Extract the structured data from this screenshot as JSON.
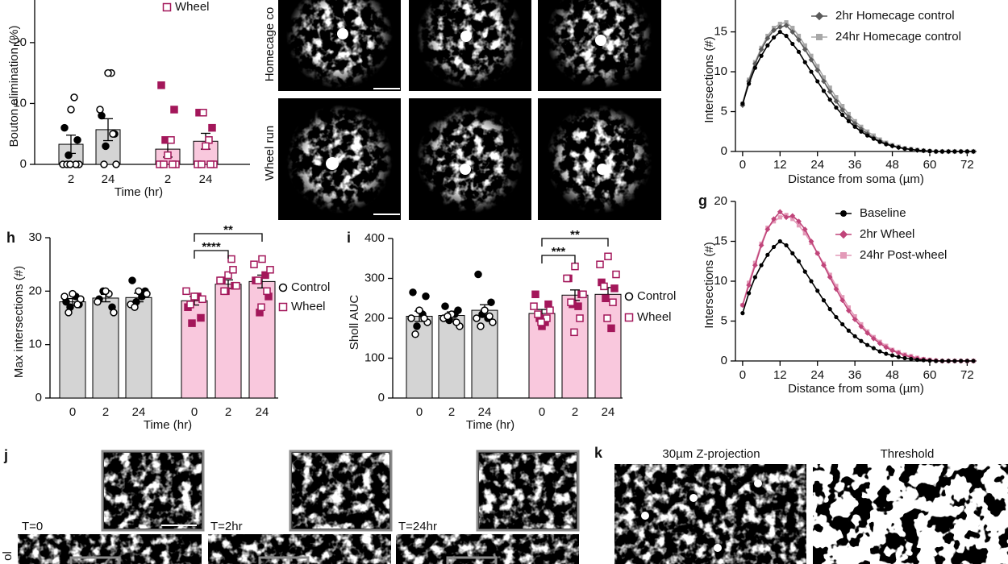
{
  "chart_data": [
    {
      "type": "bar",
      "ylabel": "Bouton elimination (%)",
      "xlabel": "Time (hr)",
      "categories": [
        "2",
        "24",
        "2",
        "24"
      ],
      "values": [
        3.3,
        5.7,
        2.5,
        3.8
      ],
      "errors": [
        1.5,
        1.8,
        1.3,
        1.3
      ],
      "colors": [
        "#d4d4d4",
        "#d4d4d4",
        "#f9c8dd",
        "#f9c8dd"
      ],
      "markers": [
        "circle",
        "circle",
        "square",
        "square"
      ],
      "point_colors": [
        "#000000",
        "#000000",
        "#a3175a",
        "#a3175a"
      ],
      "points_filled": [
        [
          6,
          4,
          1.5
        ],
        [
          8,
          5,
          3
        ],
        [
          13,
          9,
          4
        ],
        [
          8.5,
          6
        ]
      ],
      "points_open": [
        [
          11,
          9,
          0,
          0,
          0,
          0,
          0
        ],
        [
          15,
          15,
          9,
          0,
          0,
          5
        ],
        [
          4,
          1.5,
          0,
          0,
          0,
          0
        ],
        [
          8.5,
          4,
          3,
          0,
          0,
          0,
          0
        ]
      ],
      "ylim": [
        0,
        27
      ],
      "yticks": [
        0,
        10,
        20
      ],
      "legend": [
        {
          "name": "Wheel",
          "marker": "square",
          "color": "#a3175a"
        }
      ]
    },
    {
      "type": "line",
      "ylabel": "Intersections (#)",
      "xlabel": "Distance from soma (µm)",
      "x": [
        0,
        2,
        4,
        6,
        8,
        10,
        12,
        14,
        16,
        18,
        20,
        22,
        24,
        26,
        28,
        30,
        32,
        34,
        36,
        38,
        40,
        42,
        44,
        46,
        48,
        50,
        52,
        54,
        56,
        58,
        60,
        62,
        64,
        66,
        68,
        70,
        72,
        74
      ],
      "xlim": [
        -2.3,
        75
      ],
      "xticks": [
        0,
        12,
        24,
        36,
        48,
        60,
        72
      ],
      "ylim": [
        0,
        19
      ],
      "yticks": [
        0,
        5,
        10,
        15
      ],
      "series": [
        {
          "color": "#000000",
          "marker": "circle",
          "values": [
            6,
            8.5,
            10.5,
            12,
            13.3,
            14.3,
            15,
            14.5,
            13.5,
            12.5,
            11.2,
            10,
            8.8,
            7.6,
            6.5,
            5.5,
            4.6,
            3.8,
            3.1,
            2.5,
            2,
            1.6,
            1.2,
            0.9,
            0.7,
            0.5,
            0.35,
            0.25,
            0.15,
            0.1,
            0.05,
            0,
            0,
            0,
            0,
            0,
            0,
            0
          ]
        },
        {
          "name": "2hr Homecage control",
          "color": "#5a5a5a",
          "marker": "diamond",
          "values": [
            5.8,
            8.8,
            11,
            12.8,
            14.2,
            15.2,
            15.6,
            15.8,
            15,
            14,
            12.8,
            11.5,
            10.2,
            8.8,
            7.5,
            6.3,
            5.2,
            4.3,
            3.5,
            2.8,
            2.2,
            1.7,
            1.3,
            1,
            0.7,
            0.5,
            0.35,
            0.25,
            0.15,
            0.1,
            0.05,
            0,
            0,
            0,
            0,
            0,
            0,
            0
          ]
        },
        {
          "name": "24hr Homecage control",
          "color": "#a8a8a8",
          "marker": "square",
          "values": [
            6,
            9,
            11.2,
            13,
            14.5,
            15.5,
            16,
            16.2,
            15.5,
            14.5,
            13.3,
            12,
            10.7,
            9.3,
            8,
            6.8,
            5.7,
            4.7,
            3.8,
            3.1,
            2.5,
            2,
            1.5,
            1.1,
            0.8,
            0.6,
            0.4,
            0.3,
            0.2,
            0.1,
            0.05,
            0,
            0,
            0,
            0,
            0,
            0,
            0
          ]
        }
      ]
    },
    {
      "type": "line",
      "panel": "g",
      "ylabel": "Intersections (#)",
      "xlabel": "Distance from soma (µm)",
      "x": [
        0,
        2,
        4,
        6,
        8,
        10,
        12,
        14,
        16,
        18,
        20,
        22,
        24,
        26,
        28,
        30,
        32,
        34,
        36,
        38,
        40,
        42,
        44,
        46,
        48,
        50,
        52,
        54,
        56,
        58,
        60,
        62,
        64,
        66,
        68,
        70,
        72,
        74
      ],
      "xlim": [
        -2.3,
        75
      ],
      "xticks": [
        0,
        12,
        24,
        36,
        48,
        60,
        72
      ],
      "ylim": [
        0,
        20
      ],
      "yticks": [
        0,
        5,
        10,
        15,
        20
      ],
      "series": [
        {
          "name": "Baseline",
          "color": "#000000",
          "marker": "circle",
          "values": [
            6,
            8.5,
            10.5,
            12,
            13.3,
            14.3,
            15,
            14.5,
            13.5,
            12.5,
            11.2,
            10,
            8.8,
            7.6,
            6.5,
            5.5,
            4.6,
            3.8,
            3.1,
            2.5,
            2,
            1.6,
            1.2,
            0.9,
            0.7,
            0.5,
            0.35,
            0.25,
            0.15,
            0.1,
            0.05,
            0,
            0,
            0,
            0,
            0,
            0,
            0
          ]
        },
        {
          "name": "2hr Wheel",
          "color": "#c0457a",
          "marker": "diamond",
          "values": [
            7,
            9.5,
            12,
            14.5,
            16.5,
            17.8,
            18.7,
            18,
            18.2,
            17.5,
            16.5,
            15,
            13.5,
            12,
            10.5,
            9,
            7.6,
            6.3,
            5.2,
            4.3,
            3.5,
            2.8,
            2.2,
            1.7,
            1.3,
            1,
            0.7,
            0.5,
            0.3,
            0.2,
            0.1,
            0.05,
            0,
            0,
            0,
            0,
            0,
            0
          ]
        },
        {
          "name": "24hr Post-wheel",
          "color": "#e39ab8",
          "marker": "square",
          "values": [
            7,
            9.8,
            12.3,
            14.7,
            16.7,
            17.5,
            18,
            18.3,
            17.8,
            17,
            16,
            14.8,
            13.5,
            12.2,
            10.8,
            9.4,
            8,
            6.7,
            5.6,
            4.6,
            3.7,
            3,
            2.4,
            1.9,
            1.4,
            1.1,
            0.8,
            0.6,
            0.4,
            0.25,
            0.15,
            0.05,
            0,
            0,
            0,
            0,
            0,
            0
          ]
        }
      ]
    },
    {
      "type": "bar",
      "panel": "h",
      "ylabel": "Max intersections (#)",
      "xlabel": "Time (hr)",
      "categories": [
        "0",
        "2",
        "24",
        "0",
        "2",
        "24"
      ],
      "values": [
        18,
        18.7,
        18.8,
        18.2,
        21.3,
        21.8
      ],
      "errors": [
        0.6,
        0.7,
        0.8,
        0.8,
        0.8,
        1.2
      ],
      "colors": [
        "#d4d4d4",
        "#d4d4d4",
        "#d4d4d4",
        "#f9c8dd",
        "#f9c8dd",
        "#f9c8dd"
      ],
      "markers": [
        "circle",
        "circle",
        "circle",
        "square",
        "square",
        "square"
      ],
      "point_colors": [
        "#000000",
        "#000000",
        "#000000",
        "#a3175a",
        "#a3175a",
        "#a3175a"
      ],
      "points_filled": [
        [
          18,
          17.5,
          17,
          19
        ],
        [
          18.5,
          17,
          20
        ],
        [
          22,
          20,
          18,
          19
        ],
        [
          17,
          15,
          14,
          19
        ],
        [
          22,
          21,
          20
        ],
        [
          22,
          19,
          16,
          23
        ]
      ],
      "points_open": [
        [
          19.5,
          19,
          18.5,
          16,
          17.5
        ],
        [
          19.5,
          20,
          18,
          16
        ],
        [
          20,
          17.5,
          19.5,
          17
        ],
        [
          19,
          20,
          18.5,
          17.5
        ],
        [
          26,
          23,
          22,
          21,
          20,
          24
        ],
        [
          26,
          25,
          24,
          22,
          20,
          17
        ]
      ],
      "ylim": [
        0,
        30
      ],
      "yticks": [
        0,
        10,
        20,
        30
      ],
      "legend": [
        {
          "name": "Control",
          "marker": "circle",
          "color": "#000000"
        },
        {
          "name": "Wheel",
          "marker": "square",
          "color": "#a3175a"
        }
      ],
      "significance": [
        {
          "label": "****",
          "from": 3,
          "to": 4
        },
        {
          "label": "**",
          "from": 3,
          "to": 5
        }
      ]
    },
    {
      "type": "bar",
      "panel": "i",
      "ylabel": "Sholl AUC",
      "xlabel": "Time (hr)",
      "categories": [
        "0",
        "2",
        "24",
        "0",
        "2",
        "24"
      ],
      "values": [
        205,
        207,
        220,
        212,
        258,
        260
      ],
      "errors": [
        13,
        9,
        14,
        10,
        13,
        17
      ],
      "colors": [
        "#d4d4d4",
        "#d4d4d4",
        "#d4d4d4",
        "#f9c8dd",
        "#f9c8dd",
        "#f9c8dd"
      ],
      "markers": [
        "circle",
        "circle",
        "circle",
        "square",
        "square",
        "square"
      ],
      "point_colors": [
        "#000000",
        "#000000",
        "#000000",
        "#a3175a",
        "#a3175a",
        "#a3175a"
      ],
      "points_filled": [
        [
          265,
          255,
          180,
          210
        ],
        [
          230,
          220,
          195,
          210
        ],
        [
          310,
          240,
          210,
          200
        ],
        [
          260,
          235,
          200,
          190,
          180
        ],
        [
          300,
          260,
          235,
          230
        ],
        [
          290,
          275,
          250,
          175
        ]
      ],
      "points_open": [
        [
          220,
          200,
          190,
          160,
          200
        ],
        [
          210,
          200,
          180,
          205,
          190
        ],
        [
          220,
          200,
          190,
          180,
          205
        ],
        [
          230,
          220,
          210,
          200,
          190
        ],
        [
          330,
          300,
          260,
          240,
          200,
          165
        ],
        [
          355,
          335,
          310,
          280,
          240,
          200
        ]
      ],
      "ylim": [
        0,
        400
      ],
      "yticks": [
        0,
        100,
        200,
        300,
        400
      ],
      "legend": [
        {
          "name": "Control",
          "marker": "circle",
          "color": "#000000"
        },
        {
          "name": "Wheel",
          "marker": "square",
          "color": "#a3175a"
        }
      ],
      "significance": [
        {
          "label": "***",
          "from": 3,
          "to": 4
        },
        {
          "label": "**",
          "from": 3,
          "to": 5
        }
      ]
    }
  ],
  "figure": {
    "row_labels": [
      "Homecage co",
      "Wheel run",
      "ol"
    ],
    "time_labels": [
      "T=0",
      "T=2hr",
      "T=24hr"
    ],
    "panel_titles": [
      "30µm Z-projection",
      "Threshold"
    ],
    "panel_j": "j",
    "panel_k": "k"
  }
}
